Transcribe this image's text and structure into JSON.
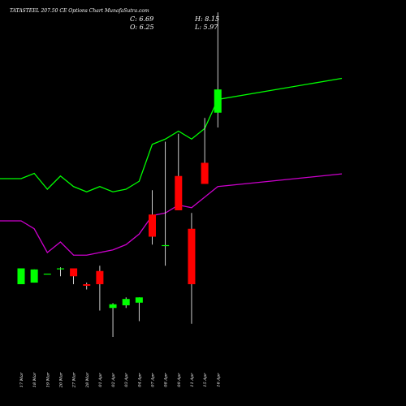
{
  "header": {
    "title": "TATASTEEL 207.50 CE Options Chart MunafaSutra.com",
    "open": "O: 6.25",
    "close": "C: 6.69",
    "high": "H: 8.15",
    "low": "L: 5.97"
  },
  "chart_data": {
    "type": "candlestick",
    "title": "TATASTEEL 207.50 CE Options Chart MunafaSutra.com",
    "categories": [
      "17 Mar",
      "18 Mar",
      "19 Mar",
      "20 Mar",
      "27 Mar",
      "28 Mar",
      "01 Apr",
      "02 Apr",
      "03 Apr",
      "04 Apr",
      "07 Apr",
      "08 Apr",
      "09 Apr",
      "11 Apr",
      "15 Apr",
      "16 Apr"
    ],
    "candles": [
      {
        "date": "17 Mar",
        "open": 3.0,
        "high": 3.3,
        "low": 3.0,
        "close": 3.3,
        "color": "#00ff00"
      },
      {
        "date": "18 Mar",
        "open": 3.03,
        "high": 3.28,
        "low": 3.03,
        "close": 3.28,
        "color": "#00ff00"
      },
      {
        "date": "19 Mar",
        "open": 3.2,
        "high": 3.2,
        "low": 3.2,
        "close": 3.2,
        "color": "#00ff00"
      },
      {
        "date": "20 Mar",
        "open": 3.3,
        "high": 3.32,
        "low": 3.15,
        "close": 3.3,
        "color": "#00ff00"
      },
      {
        "date": "27 Mar",
        "open": 3.3,
        "high": 3.3,
        "low": 3.0,
        "close": 3.15,
        "color": "#ff0000"
      },
      {
        "date": "28 Mar",
        "open": 3.0,
        "high": 3.03,
        "low": 2.9,
        "close": 2.97,
        "color": "#ff0000"
      },
      {
        "date": "01 Apr",
        "open": 3.25,
        "high": 3.35,
        "low": 2.5,
        "close": 3.0,
        "color": "#ff0000"
      },
      {
        "date": "02 Apr",
        "open": 2.55,
        "high": 2.64,
        "low": 2.0,
        "close": 2.62,
        "color": "#00ff00"
      },
      {
        "date": "03 Apr",
        "open": 2.6,
        "high": 2.75,
        "low": 2.55,
        "close": 2.72,
        "color": "#00ff00"
      },
      {
        "date": "04 Apr",
        "open": 2.65,
        "high": 2.75,
        "low": 2.3,
        "close": 2.75,
        "color": "#00ff00"
      },
      {
        "date": "07 Apr",
        "open": 4.32,
        "high": 4.78,
        "low": 3.75,
        "close": 3.9,
        "color": "#ff0000"
      },
      {
        "date": "08 Apr",
        "open": 3.74,
        "high": 5.7,
        "low": 3.35,
        "close": 3.74,
        "color": "#00ff00"
      },
      {
        "date": "09 Apr",
        "open": 5.05,
        "high": 5.85,
        "low": 4.4,
        "close": 4.4,
        "color": "#ff0000"
      },
      {
        "date": "11 Apr",
        "open": 4.05,
        "high": 4.35,
        "low": 2.25,
        "close": 3.0,
        "color": "#ff0000"
      },
      {
        "date": "15 Apr",
        "open": 5.3,
        "high": 6.15,
        "low": 4.9,
        "close": 4.9,
        "color": "#ff0000"
      },
      {
        "date": "16 Apr",
        "open": 6.25,
        "high": 8.15,
        "low": 5.97,
        "close": 6.69,
        "color": "#00ff00"
      }
    ],
    "series": [
      {
        "line_color": "#00ff00",
        "values": [
          5.0,
          5.1,
          4.8,
          5.05,
          4.85,
          4.75,
          4.85,
          4.75,
          4.8,
          4.95,
          5.65,
          5.75,
          5.9,
          5.75,
          5.95,
          6.5
        ]
      },
      {
        "line_color": "#cc00cc",
        "values": [
          4.2,
          4.05,
          3.6,
          3.8,
          3.55,
          3.55,
          3.6,
          3.65,
          3.75,
          3.95,
          4.3,
          4.35,
          4.5,
          4.45,
          4.65,
          4.85
        ]
      }
    ]
  }
}
